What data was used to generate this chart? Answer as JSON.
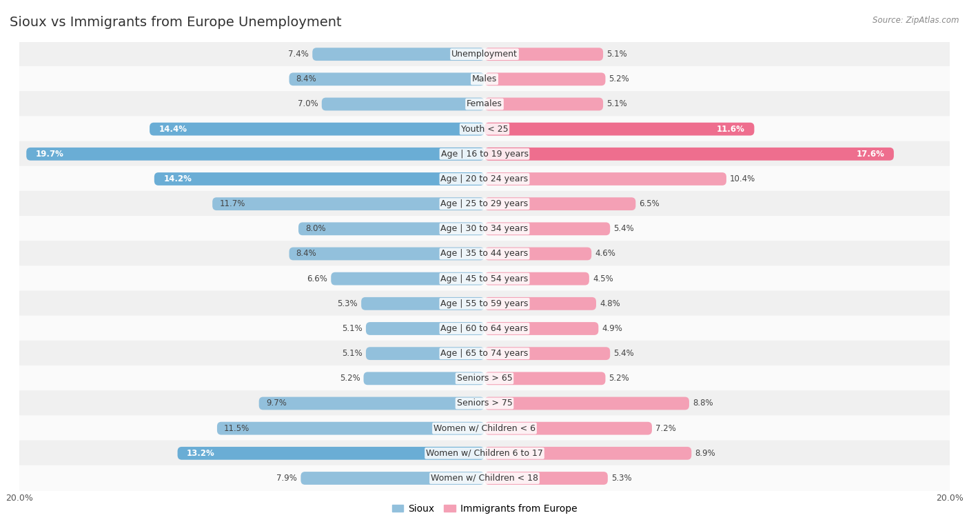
{
  "title": "Sioux vs Immigrants from Europe Unemployment",
  "source": "Source: ZipAtlas.com",
  "categories": [
    "Unemployment",
    "Males",
    "Females",
    "Youth < 25",
    "Age | 16 to 19 years",
    "Age | 20 to 24 years",
    "Age | 25 to 29 years",
    "Age | 30 to 34 years",
    "Age | 35 to 44 years",
    "Age | 45 to 54 years",
    "Age | 55 to 59 years",
    "Age | 60 to 64 years",
    "Age | 65 to 74 years",
    "Seniors > 65",
    "Seniors > 75",
    "Women w/ Children < 6",
    "Women w/ Children 6 to 17",
    "Women w/ Children < 18"
  ],
  "sioux_values": [
    7.4,
    8.4,
    7.0,
    14.4,
    19.7,
    14.2,
    11.7,
    8.0,
    8.4,
    6.6,
    5.3,
    5.1,
    5.1,
    5.2,
    9.7,
    11.5,
    13.2,
    7.9
  ],
  "europe_values": [
    5.1,
    5.2,
    5.1,
    11.6,
    17.6,
    10.4,
    6.5,
    5.4,
    4.6,
    4.5,
    4.8,
    4.9,
    5.4,
    5.2,
    8.8,
    7.2,
    8.9,
    5.3
  ],
  "sioux_color": "#92C0DC",
  "europe_color": "#F4A0B5",
  "sioux_highlight_indices": [
    3,
    4,
    5,
    16
  ],
  "europe_highlight_indices": [
    3,
    4
  ],
  "sioux_highlight_color": "#6AADD5",
  "europe_highlight_color": "#EE6E8E",
  "xlim": 20.0,
  "bg_color_odd": "#f0f0f0",
  "bg_color_even": "#fafafa",
  "label_fontsize": 9.0,
  "value_fontsize": 8.5,
  "title_fontsize": 14,
  "legend_labels": [
    "Sioux",
    "Immigrants from Europe"
  ],
  "axis_label_fontsize": 9
}
